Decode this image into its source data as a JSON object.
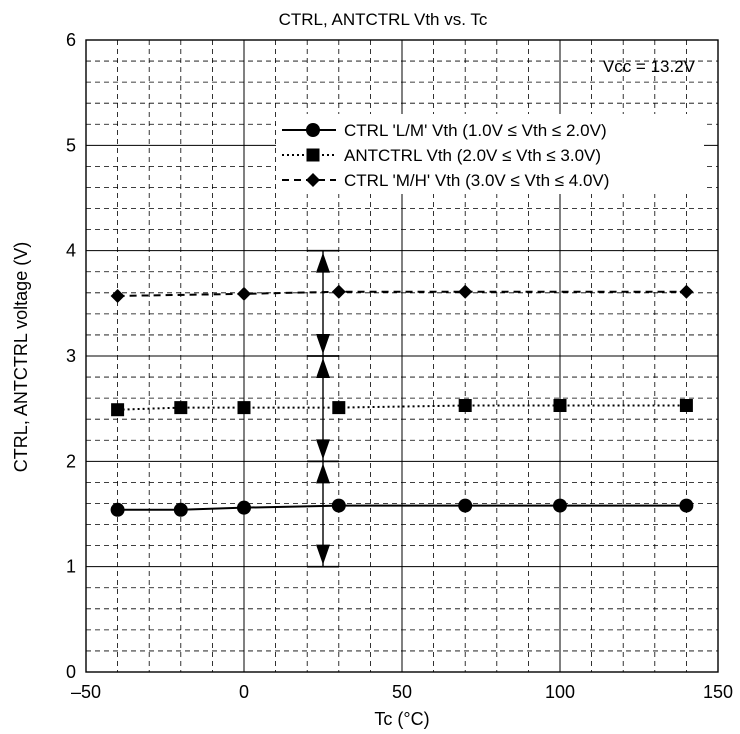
{
  "chart_data": {
    "type": "line",
    "title": "CTRL, ANTCTRL Vth vs. Tc",
    "xlabel": "Tc  (°C)",
    "ylabel": "CTRL, ANTCTRL voltage  (V)",
    "xlim": [
      -50,
      150
    ],
    "ylim": [
      0,
      6
    ],
    "x_major_ticks": [
      -50,
      0,
      50,
      100,
      150
    ],
    "x_tick_labels": [
      "–50",
      "0",
      "50",
      "100",
      "150"
    ],
    "y_major_ticks": [
      0,
      1,
      2,
      3,
      4,
      5,
      6
    ],
    "y_tick_labels": [
      "0",
      "1",
      "2",
      "3",
      "4",
      "5",
      "6"
    ],
    "x_minor_step": 10,
    "y_minor_step": 0.2,
    "grid": true,
    "legend_position": "top-right",
    "annotation": "Vcc = 13.2V",
    "series": [
      {
        "name": "CTRL 'L/M' Vth (1.0V ≤ Vth ≤ 2.0V)",
        "marker": "circle",
        "line": "solid",
        "x": [
          -40,
          -20,
          0,
          30,
          70,
          100,
          140
        ],
        "y": [
          1.54,
          1.54,
          1.56,
          1.58,
          1.58,
          1.58,
          1.58
        ]
      },
      {
        "name": "ANTCTRL Vth (2.0V ≤ Vth ≤ 3.0V)",
        "marker": "square",
        "line": "dotted",
        "x": [
          -40,
          -20,
          0,
          30,
          70,
          100,
          140
        ],
        "y": [
          2.49,
          2.51,
          2.51,
          2.51,
          2.53,
          2.53,
          2.53
        ]
      },
      {
        "name": "CTRL 'M/H' Vth (3.0V ≤ Vth ≤ 4.0V)",
        "marker": "diamond",
        "line": "dashed",
        "x": [
          -40,
          0,
          30,
          70,
          140
        ],
        "y": [
          3.57,
          3.59,
          3.61,
          3.61,
          3.61
        ]
      }
    ],
    "range_bars": [
      {
        "x": 25,
        "y": [
          1.0,
          2.0
        ]
      },
      {
        "x": 25,
        "y": [
          2.0,
          3.0
        ]
      },
      {
        "x": 25,
        "y": [
          3.0,
          4.0
        ]
      }
    ]
  }
}
